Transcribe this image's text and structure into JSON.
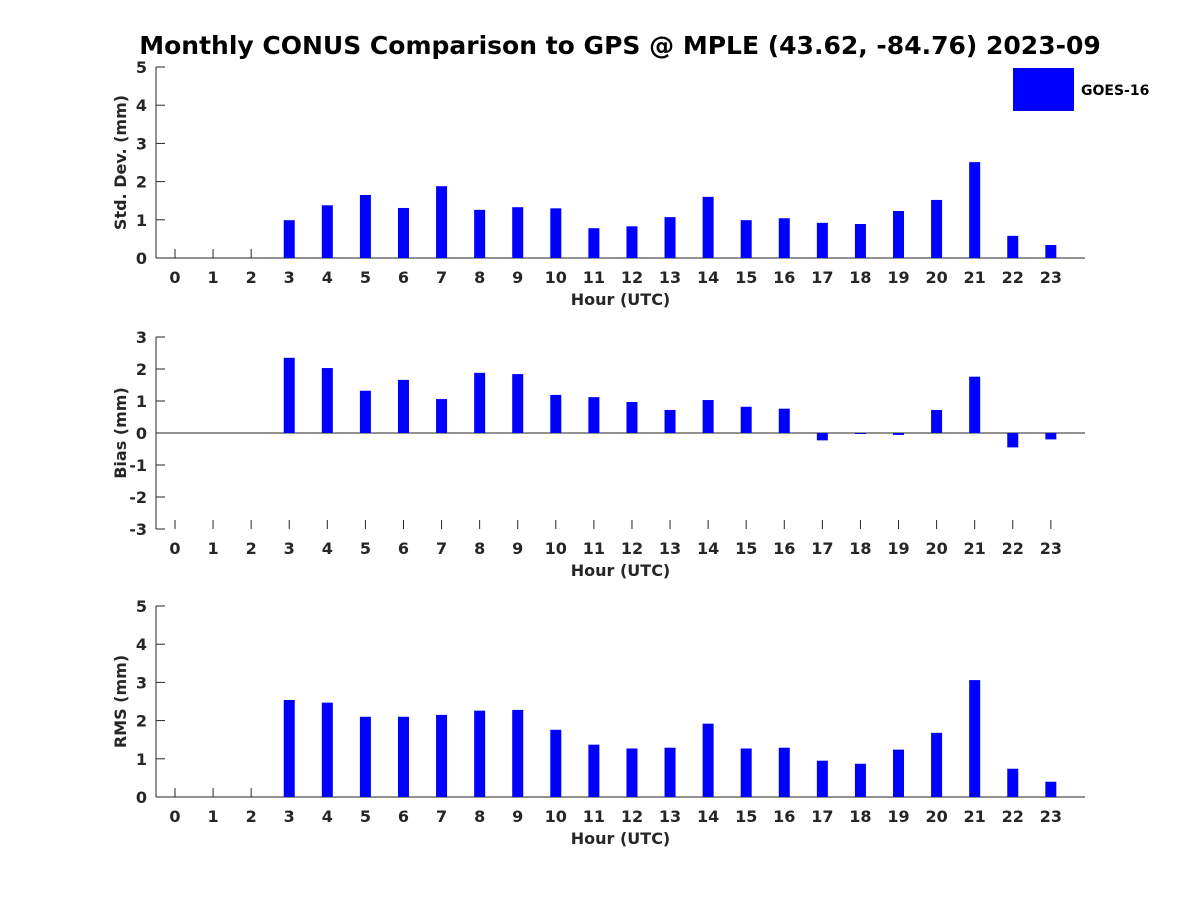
{
  "title": "Monthly CONUS Comparison to GPS @ MPLE (43.62, -84.76) 2023-09",
  "legend": {
    "label": "GOES-16",
    "color": "#0000ff",
    "placement": "top-right"
  },
  "chart_data": [
    {
      "type": "bar",
      "title": "Monthly CONUS Comparison to GPS @ MPLE (43.62, -84.76) 2023-09",
      "xlabel": "Hour (UTC)",
      "ylabel": "Std. Dev. (mm)",
      "ylim": [
        0,
        5
      ],
      "yticks": [
        0,
        1,
        2,
        3,
        4,
        5
      ],
      "grid": false,
      "categories": [
        "0",
        "1",
        "2",
        "3",
        "4",
        "5",
        "6",
        "7",
        "8",
        "9",
        "10",
        "11",
        "12",
        "13",
        "14",
        "15",
        "16",
        "17",
        "18",
        "19",
        "20",
        "21",
        "22",
        "23"
      ],
      "series": [
        {
          "name": "GOES-16",
          "color": "#0000ff",
          "values": [
            null,
            null,
            null,
            0.99,
            1.38,
            1.65,
            1.31,
            1.88,
            1.26,
            1.33,
            1.3,
            0.78,
            0.83,
            1.07,
            1.6,
            0.99,
            1.04,
            0.92,
            0.89,
            1.23,
            1.52,
            2.51,
            0.58,
            0.34
          ]
        }
      ]
    },
    {
      "type": "bar",
      "xlabel": "Hour (UTC)",
      "ylabel": "Bias (mm)",
      "ylim": [
        -3,
        3
      ],
      "yticks": [
        -3,
        -2,
        -1,
        0,
        1,
        2,
        3
      ],
      "grid": false,
      "categories": [
        "0",
        "1",
        "2",
        "3",
        "4",
        "5",
        "6",
        "7",
        "8",
        "9",
        "10",
        "11",
        "12",
        "13",
        "14",
        "15",
        "16",
        "17",
        "18",
        "19",
        "20",
        "21",
        "22",
        "23"
      ],
      "series": [
        {
          "name": "GOES-16",
          "color": "#0000ff",
          "values": [
            null,
            null,
            null,
            2.35,
            2.03,
            1.32,
            1.66,
            1.06,
            1.88,
            1.84,
            1.19,
            1.12,
            0.97,
            0.72,
            1.03,
            0.82,
            0.76,
            -0.23,
            -0.02,
            -0.06,
            0.72,
            1.76,
            -0.45,
            -0.2
          ]
        }
      ]
    },
    {
      "type": "bar",
      "xlabel": "Hour (UTC)",
      "ylabel": "RMS (mm)",
      "ylim": [
        0,
        5
      ],
      "yticks": [
        0,
        1,
        2,
        3,
        4,
        5
      ],
      "grid": false,
      "categories": [
        "0",
        "1",
        "2",
        "3",
        "4",
        "5",
        "6",
        "7",
        "8",
        "9",
        "10",
        "11",
        "12",
        "13",
        "14",
        "15",
        "16",
        "17",
        "18",
        "19",
        "20",
        "21",
        "22",
        "23"
      ],
      "series": [
        {
          "name": "GOES-16",
          "color": "#0000ff",
          "values": [
            null,
            null,
            null,
            2.54,
            2.47,
            2.1,
            2.1,
            2.15,
            2.26,
            2.28,
            1.76,
            1.37,
            1.27,
            1.29,
            1.92,
            1.27,
            1.29,
            0.95,
            0.87,
            1.24,
            1.68,
            3.06,
            0.74,
            0.4
          ]
        }
      ]
    }
  ]
}
